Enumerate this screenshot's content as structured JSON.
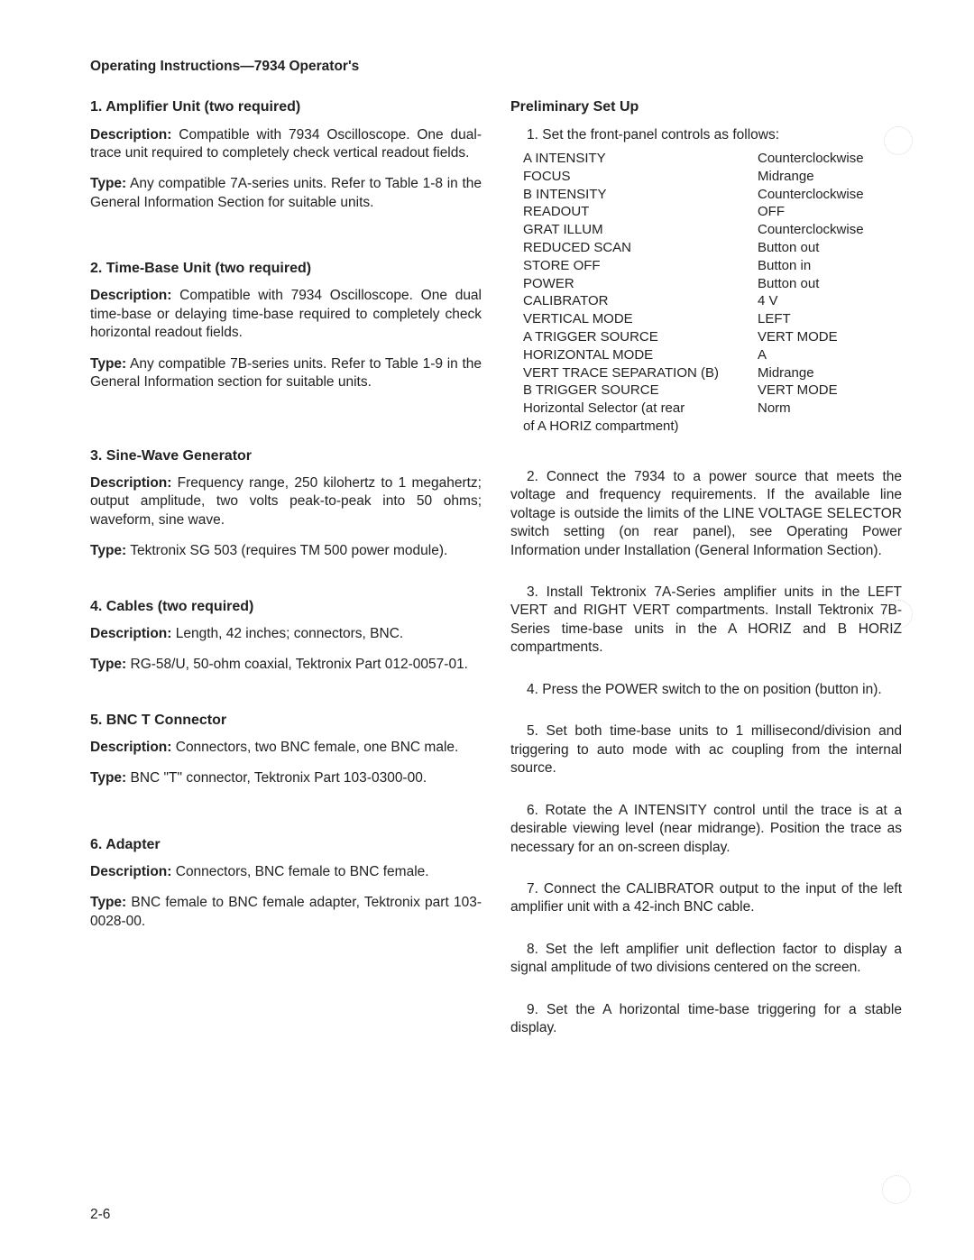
{
  "header": "Operating Instructions—7934 Operator's",
  "page_number": "2-6",
  "left": {
    "s1": {
      "title": "1.  Amplifier Unit (two required)",
      "desc_label": "Description:",
      "desc": " Compatible with 7934 Oscilloscope. One dual-trace unit required to completely check vertical readout fields.",
      "type_label": "Type:",
      "type": " Any compatible 7A-series units. Refer to Table 1-8 in the General Information Section for suitable units."
    },
    "s2": {
      "title": "2.  Time-Base Unit (two required)",
      "desc_label": "Description:",
      "desc": " Compatible with 7934 Oscilloscope. One dual time-base or delaying time-base required to completely check horizontal readout fields.",
      "type_label": "Type:",
      "type": " Any compatible 7B-series units. Refer to Table 1-9 in the General Information section for suitable units."
    },
    "s3": {
      "title": "3.  Sine-Wave Generator",
      "desc_label": "Description:",
      "desc": " Frequency range, 250 kilohertz to 1 megahertz; output amplitude, two volts peak-to-peak into 50 ohms; waveform, sine wave.",
      "type_label": "Type:",
      "type": " Tektronix SG 503 (requires TM 500 power module)."
    },
    "s4": {
      "title": "4.  Cables (two required)",
      "desc_label": "Description:",
      "desc": " Length, 42 inches; connectors, BNC.",
      "type_label": "Type:",
      "type": " RG-58/U, 50-ohm coaxial, Tektronix Part 012-0057-01."
    },
    "s5": {
      "title": "5.  BNC T Connector",
      "desc_label": "Description:",
      "desc": " Connectors, two BNC female, one BNC male.",
      "type_label": "Type:",
      "type": " BNC \"T\" connector, Tektronix Part 103-0300-00."
    },
    "s6": {
      "title": "6.  Adapter",
      "desc_label": "Description:",
      "desc": " Connectors, BNC female to BNC female.",
      "type_label": "Type:",
      "type": " BNC female to BNC female adapter, Tektronix part 103-0028-00."
    }
  },
  "right": {
    "title": "Preliminary Set Up",
    "step1_intro": "1. Set the front-panel controls as follows:",
    "controls": [
      [
        "A INTENSITY",
        "Counterclockwise"
      ],
      [
        "FOCUS",
        "Midrange"
      ],
      [
        "B INTENSITY",
        "Counterclockwise"
      ],
      [
        "READOUT",
        "OFF"
      ],
      [
        "GRAT ILLUM",
        "Counterclockwise"
      ],
      [
        "REDUCED SCAN",
        "Button out"
      ],
      [
        "STORE OFF",
        "Button in"
      ],
      [
        "POWER",
        "Button out"
      ],
      [
        "CALIBRATOR",
        "4 V"
      ],
      [
        "VERTICAL MODE",
        "LEFT"
      ],
      [
        "A TRIGGER SOURCE",
        "VERT MODE"
      ],
      [
        "HORIZONTAL MODE",
        "A"
      ],
      [
        "VERT TRACE SEPARATION (B)",
        "Midrange"
      ],
      [
        "B TRIGGER SOURCE",
        "VERT MODE"
      ],
      [
        "Horizontal Selector (at rear\nof A HORIZ compartment)",
        "Norm"
      ]
    ],
    "step2": "2. Connect the 7934 to a power source that meets the voltage and frequency requirements. If the available line voltage is outside the limits of the LINE VOLTAGE SELECTOR switch setting (on rear panel), see Operating Power Information under Installation (General Information Section).",
    "step3": "3. Install Tektronix 7A-Series amplifier units in the LEFT VERT and RIGHT VERT compartments. Install Tektronix 7B-Series time-base units in the A HORIZ and B HORIZ compartments.",
    "step4": "4. Press the POWER switch to the on position (button in).",
    "step5": "5. Set both time-base units to 1 millisecond/division and triggering to auto mode with ac coupling from the internal source.",
    "step6": "6. Rotate the A INTENSITY control until the trace is at a desirable viewing level (near midrange). Position the trace as necessary for an on-screen display.",
    "step7": "7. Connect the CALIBRATOR output to the input of the left amplifier unit with a 42-inch BNC cable.",
    "step8": "8. Set the left amplifier unit deflection factor to display a signal amplitude of two divisions centered on the screen.",
    "step9": "9. Set the A horizontal time-base triggering for a stable display."
  }
}
